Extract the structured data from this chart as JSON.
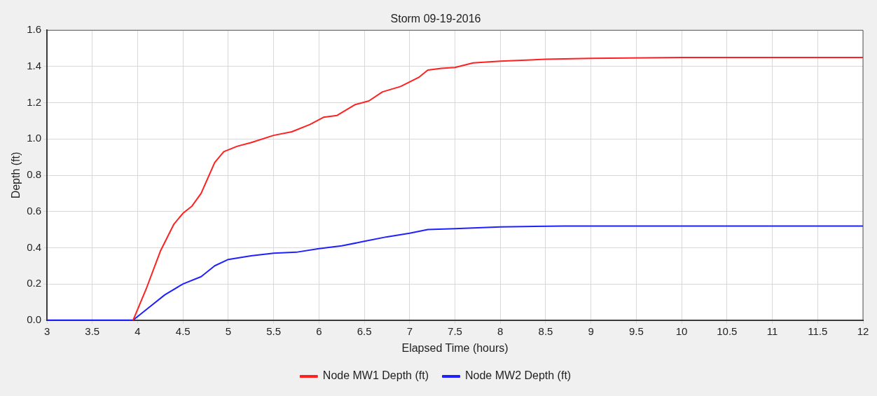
{
  "chart_data": {
    "type": "line",
    "title": "Storm 09-19-2016",
    "xlabel": "Elapsed Time (hours)",
    "ylabel": "Depth (ft)",
    "xlim": [
      3,
      12
    ],
    "xticks": [
      {
        "value": 3,
        "label": "3"
      },
      {
        "value": 3.5,
        "label": "3.5"
      },
      {
        "value": 4,
        "label": "4"
      },
      {
        "value": 4.5,
        "label": "4.5"
      },
      {
        "value": 5,
        "label": "5"
      },
      {
        "value": 5.5,
        "label": "5.5"
      },
      {
        "value": 6,
        "label": "6"
      },
      {
        "value": 6.5,
        "label": "6.5"
      },
      {
        "value": 7,
        "label": "7"
      },
      {
        "value": 7.5,
        "label": "7.5"
      },
      {
        "value": 8,
        "label": "8"
      },
      {
        "value": 8.5,
        "label": "8.5"
      },
      {
        "value": 9,
        "label": "9"
      },
      {
        "value": 9.5,
        "label": "9.5"
      },
      {
        "value": 10,
        "label": "10"
      },
      {
        "value": 10.5,
        "label": "10.5"
      },
      {
        "value": 11,
        "label": "11"
      },
      {
        "value": 11.5,
        "label": "11.5"
      },
      {
        "value": 12,
        "label": "12"
      }
    ],
    "ylim": [
      0,
      1.6
    ],
    "yticks": [
      {
        "value": 0,
        "label": "0.0"
      },
      {
        "value": 0.2,
        "label": "0.2"
      },
      {
        "value": 0.4,
        "label": "0.4"
      },
      {
        "value": 0.6,
        "label": "0.6"
      },
      {
        "value": 0.8,
        "label": "0.8"
      },
      {
        "value": 1,
        "label": "1.0"
      },
      {
        "value": 1.2,
        "label": "1.2"
      },
      {
        "value": 1.4,
        "label": "1.4"
      },
      {
        "value": 1.6,
        "label": "1.6"
      }
    ],
    "grid": true,
    "legend": "bottom",
    "marker": "none",
    "line_style": "solid",
    "series": [
      {
        "name": "Node MW1 Depth (ft)",
        "color": "#ff2020",
        "x": [
          3.95,
          4.1,
          4.25,
          4.4,
          4.5,
          4.6,
          4.7,
          4.85,
          4.95,
          5.1,
          5.25,
          5.5,
          5.7,
          5.9,
          6.05,
          6.2,
          6.4,
          6.55,
          6.7,
          6.9,
          7.1,
          7.2,
          7.35,
          7.5,
          7.7,
          8,
          8.5,
          9,
          10,
          12
        ],
        "values": [
          0,
          0.18,
          0.38,
          0.53,
          0.59,
          0.63,
          0.7,
          0.87,
          0.93,
          0.96,
          0.98,
          1.02,
          1.04,
          1.08,
          1.12,
          1.13,
          1.19,
          1.21,
          1.26,
          1.29,
          1.34,
          1.38,
          1.39,
          1.395,
          1.42,
          1.43,
          1.44,
          1.445,
          1.45,
          1.45
        ]
      },
      {
        "name": "Node MW2 Depth (ft)",
        "color": "#2020ff",
        "x": [
          3,
          3.95,
          4.1,
          4.3,
          4.5,
          4.7,
          4.85,
          5,
          5.25,
          5.5,
          5.75,
          6,
          6.25,
          6.5,
          6.75,
          7,
          7.2,
          7.5,
          8,
          8.7,
          12
        ],
        "values": [
          0,
          0,
          0.06,
          0.14,
          0.2,
          0.24,
          0.3,
          0.335,
          0.355,
          0.37,
          0.375,
          0.395,
          0.41,
          0.435,
          0.46,
          0.48,
          0.5,
          0.505,
          0.515,
          0.52,
          0.52
        ]
      }
    ]
  }
}
